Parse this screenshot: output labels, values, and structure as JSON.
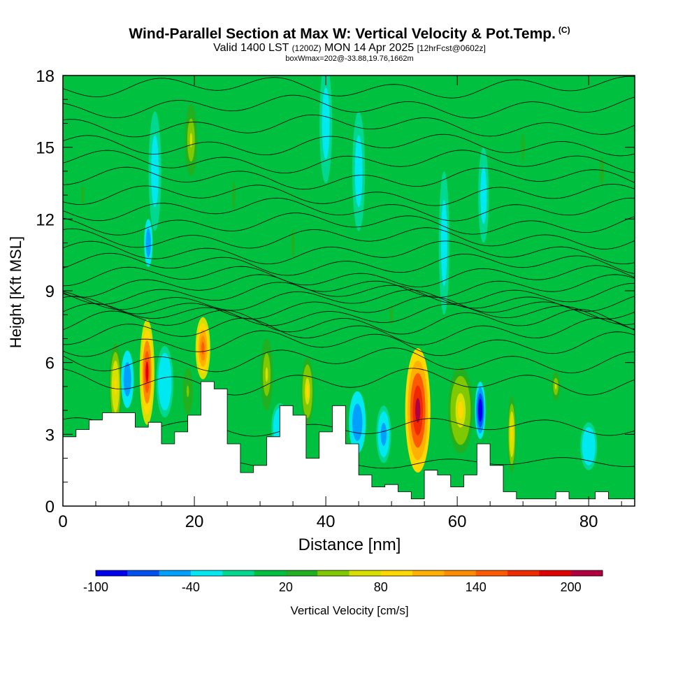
{
  "header": {
    "title": "Wind-Parallel Section at Max W: Vertical Velocity & Pot.Temp.",
    "title_mark": "(C)",
    "valid_prefix": "Valid 1400 LST",
    "valid_utc": "(1200Z)",
    "valid_date": "MON 14 Apr 2025",
    "forecast": "[12hrFcst@0602z]",
    "box_info": "boxWmax=202@-33.88,19.76,1662m"
  },
  "chart_data": {
    "type": "heatmap",
    "xlabel": "Distance [nm]",
    "ylabel": "Height [Kft MSL]",
    "xlim": [
      0,
      87
    ],
    "ylim": [
      0,
      18
    ],
    "x_ticks": [
      0,
      20,
      40,
      60,
      80
    ],
    "y_ticks": [
      0,
      3,
      6,
      9,
      12,
      15,
      18
    ],
    "colorbar": {
      "label": "Vertical Velocity [cm/s]",
      "ticks": [
        "-100",
        "-40",
        "20",
        "80",
        "140",
        "200"
      ],
      "tick_values": [
        -100,
        -40,
        20,
        80,
        140,
        200
      ],
      "range": [
        -100,
        220
      ],
      "colors": [
        "#0000ee",
        "#0050f0",
        "#00a0ff",
        "#00e8f0",
        "#00d890",
        "#00c040",
        "#20b020",
        "#80c800",
        "#d8e000",
        "#ffd800",
        "#ffb000",
        "#ff8c00",
        "#ff5a00",
        "#f02a00",
        "#e00000",
        "#b00040"
      ]
    },
    "terrain_height_kft": {
      "x": [
        0,
        2,
        4,
        6,
        8,
        11,
        13,
        15,
        17,
        19,
        21,
        23,
        25,
        27,
        29,
        31,
        33,
        35,
        37,
        39,
        41,
        43,
        45,
        47,
        49,
        51,
        53,
        55,
        57,
        59,
        61,
        63,
        65,
        67,
        69,
        71,
        73,
        75,
        77,
        79,
        81,
        83,
        85,
        87
      ],
      "h": [
        2.9,
        3.2,
        3.6,
        3.9,
        3.9,
        3.3,
        3.5,
        2.6,
        3.1,
        3.8,
        5.2,
        4.9,
        2.6,
        1.4,
        1.7,
        2.9,
        4.2,
        3.8,
        2.0,
        3.1,
        4.2,
        2.6,
        1.3,
        0.8,
        0.9,
        0.6,
        0.3,
        1.5,
        1.3,
        0.8,
        1.3,
        2.6,
        1.7,
        0.6,
        0.3,
        0.3,
        0.3,
        0.6,
        0.3,
        0.3,
        0.6,
        0.3,
        0.3,
        0.3
      ]
    },
    "vertical_velocity_cells": [
      {
        "x": 8.0,
        "y": 5.0,
        "wx": 0.6,
        "wy": 1.8,
        "value": 90
      },
      {
        "x": 9.8,
        "y": 5.3,
        "wx": 0.6,
        "wy": 1.2,
        "value": -60
      },
      {
        "x": 12.8,
        "y": 5.6,
        "wx": 0.7,
        "wy": 2.2,
        "value": 180
      },
      {
        "x": 13.0,
        "y": 11.0,
        "wx": 0.4,
        "wy": 1.0,
        "value": -60
      },
      {
        "x": 15.5,
        "y": 5.2,
        "wx": 0.8,
        "wy": 1.5,
        "value": -40
      },
      {
        "x": 19.0,
        "y": 4.8,
        "wx": 0.6,
        "wy": 1.2,
        "value": 40
      },
      {
        "x": 21.3,
        "y": 6.6,
        "wx": 0.7,
        "wy": 1.3,
        "value": 150
      },
      {
        "x": 19.5,
        "y": 15.3,
        "wx": 0.6,
        "wy": 1.5,
        "value": 60
      },
      {
        "x": 31.0,
        "y": 5.5,
        "wx": 0.6,
        "wy": 1.5,
        "value": 60
      },
      {
        "x": 33.0,
        "y": 3.3,
        "wx": 0.8,
        "wy": 1.0,
        "value": -40
      },
      {
        "x": 37.2,
        "y": 4.8,
        "wx": 0.6,
        "wy": 1.4,
        "value": 80
      },
      {
        "x": 44.8,
        "y": 3.5,
        "wx": 0.8,
        "wy": 1.3,
        "value": -60
      },
      {
        "x": 48.8,
        "y": 3.0,
        "wx": 0.7,
        "wy": 1.2,
        "value": -50
      },
      {
        "x": 54.0,
        "y": 4.0,
        "wx": 1.2,
        "wy": 2.6,
        "value": 200
      },
      {
        "x": 60.5,
        "y": 4.0,
        "wx": 1.2,
        "wy": 1.8,
        "value": 80
      },
      {
        "x": 63.5,
        "y": 4.0,
        "wx": 0.5,
        "wy": 1.2,
        "value": -100
      },
      {
        "x": 68.3,
        "y": 3.0,
        "wx": 0.4,
        "wy": 1.6,
        "value": 90
      },
      {
        "x": 75.0,
        "y": 5.0,
        "wx": 0.4,
        "wy": 0.6,
        "value": 60
      },
      {
        "x": 80.0,
        "y": 2.5,
        "wx": 0.8,
        "wy": 1.0,
        "value": -40
      },
      {
        "x": 40.0,
        "y": 16.0,
        "wx": 0.6,
        "wy": 2.5,
        "value": -30
      },
      {
        "x": 45.0,
        "y": 14.0,
        "wx": 0.6,
        "wy": 2.5,
        "value": -30
      },
      {
        "x": 14.0,
        "y": 14.0,
        "wx": 0.6,
        "wy": 2.5,
        "value": -30
      },
      {
        "x": 58.0,
        "y": 11.0,
        "wx": 0.5,
        "wy": 3.0,
        "value": -30
      },
      {
        "x": 64.0,
        "y": 13.0,
        "wx": 0.5,
        "wy": 2.0,
        "value": -30
      },
      {
        "x": 3.0,
        "y": 13.0,
        "wx": 0.8,
        "wy": 2.0,
        "value": 20
      },
      {
        "x": 26.0,
        "y": 13.0,
        "wx": 0.8,
        "wy": 3.0,
        "value": 20
      },
      {
        "x": 35.0,
        "y": 11.0,
        "wx": 0.8,
        "wy": 3.0,
        "value": 20
      },
      {
        "x": 70.0,
        "y": 15.0,
        "wx": 0.8,
        "wy": 3.0,
        "value": 20
      },
      {
        "x": 82.0,
        "y": 14.0,
        "wx": 1.0,
        "wy": 3.0,
        "value": 20
      },
      {
        "x": 50.0,
        "y": 8.0,
        "wx": 0.8,
        "wy": 2.0,
        "value": 20
      }
    ],
    "theta_contours": [
      {
        "base": 1.8,
        "amp": 0.15
      },
      {
        "base": 3.3,
        "amp": 0.25
      },
      {
        "base": 5.2,
        "amp": 0.35
      },
      {
        "base": 6.1,
        "amp": 0.35
      },
      {
        "base": 6.8,
        "amp": 0.35
      },
      {
        "base": 7.3,
        "amp": 0.35
      },
      {
        "base": 7.7,
        "amp": 0.35
      },
      {
        "base": 8.0,
        "amp": 0.3
      },
      {
        "base": 8.3,
        "amp": 0.3
      },
      {
        "base": 8.6,
        "amp": 0.3
      },
      {
        "base": 8.9,
        "amp": 0.3
      },
      {
        "base": 9.2,
        "amp": 0.3
      },
      {
        "base": 9.6,
        "amp": 0.3
      },
      {
        "base": 10.1,
        "amp": 0.3
      },
      {
        "base": 10.6,
        "amp": 0.3
      },
      {
        "base": 11.2,
        "amp": 0.3
      },
      {
        "base": 11.8,
        "amp": 0.3
      },
      {
        "base": 12.4,
        "amp": 0.3
      },
      {
        "base": 13.0,
        "amp": 0.3
      },
      {
        "base": 13.7,
        "amp": 0.3
      },
      {
        "base": 14.4,
        "amp": 0.3
      },
      {
        "base": 15.1,
        "amp": 0.3
      },
      {
        "base": 15.9,
        "amp": 0.3
      },
      {
        "base": 16.7,
        "amp": 0.3
      },
      {
        "base": 17.5,
        "amp": 0.3
      }
    ]
  }
}
